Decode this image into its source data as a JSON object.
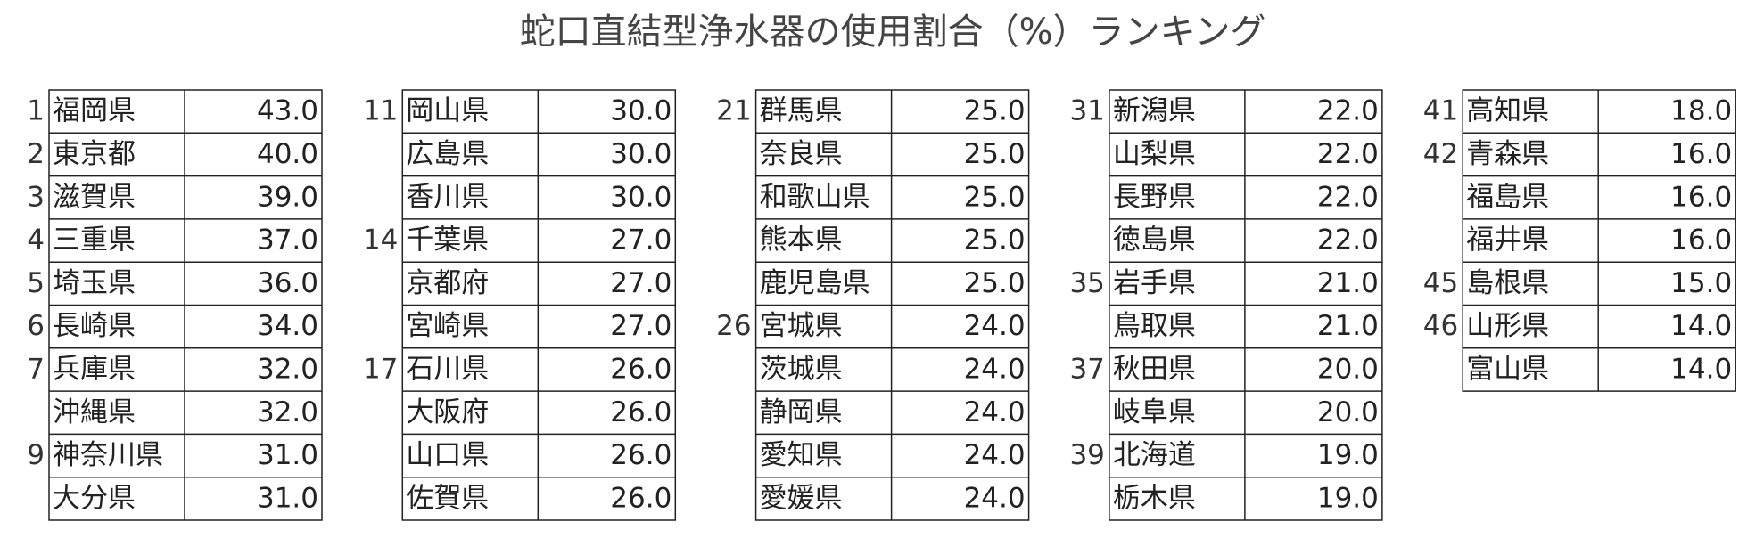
{
  "title": "蛇口直結型浄水器の使用割合（%）ランキング",
  "columns": [
    {
      "rows": [
        {
          "rank": 1,
          "name": "福岡県",
          "value": "43.0"
        },
        {
          "rank": 2,
          "name": "東京都",
          "value": "40.0"
        },
        {
          "rank": 3,
          "name": "滋賀県",
          "value": "39.0"
        },
        {
          "rank": 4,
          "name": "三重県",
          "value": "37.0"
        },
        {
          "rank": 5,
          "name": "埼玉県",
          "value": "36.0"
        },
        {
          "rank": 6,
          "name": "長崎県",
          "value": "34.0"
        },
        {
          "rank": 7,
          "name": "兵庫県",
          "value": "32.0"
        },
        {
          "rank": null,
          "name": "沖縄県",
          "value": "32.0"
        },
        {
          "rank": 9,
          "name": "神奈川県",
          "value": "31.0"
        },
        {
          "rank": null,
          "name": "大分県",
          "value": "31.0"
        }
      ]
    },
    {
      "rows": [
        {
          "rank": 11,
          "name": "岡山県",
          "value": "30.0"
        },
        {
          "rank": null,
          "name": "広島県",
          "value": "30.0"
        },
        {
          "rank": null,
          "name": "香川県",
          "value": "30.0"
        },
        {
          "rank": 14,
          "name": "千葉県",
          "value": "27.0"
        },
        {
          "rank": null,
          "name": "京都府",
          "value": "27.0"
        },
        {
          "rank": null,
          "name": "宮崎県",
          "value": "27.0"
        },
        {
          "rank": 17,
          "name": "石川県",
          "value": "26.0"
        },
        {
          "rank": null,
          "name": "大阪府",
          "value": "26.0"
        },
        {
          "rank": null,
          "name": "山口県",
          "value": "26.0"
        },
        {
          "rank": null,
          "name": "佐賀県",
          "value": "26.0"
        }
      ]
    },
    {
      "rows": [
        {
          "rank": 21,
          "name": "群馬県",
          "value": "25.0"
        },
        {
          "rank": null,
          "name": "奈良県",
          "value": "25.0"
        },
        {
          "rank": null,
          "name": "和歌山県",
          "value": "25.0"
        },
        {
          "rank": null,
          "name": "熊本県",
          "value": "25.0"
        },
        {
          "rank": null,
          "name": "鹿児島県",
          "value": "25.0"
        },
        {
          "rank": 26,
          "name": "宮城県",
          "value": "24.0"
        },
        {
          "rank": null,
          "name": "茨城県",
          "value": "24.0"
        },
        {
          "rank": null,
          "name": "静岡県",
          "value": "24.0"
        },
        {
          "rank": null,
          "name": "愛知県",
          "value": "24.0"
        },
        {
          "rank": null,
          "name": "愛媛県",
          "value": "24.0"
        }
      ]
    },
    {
      "rows": [
        {
          "rank": 31,
          "name": "新潟県",
          "value": "22.0"
        },
        {
          "rank": null,
          "name": "山梨県",
          "value": "22.0"
        },
        {
          "rank": null,
          "name": "長野県",
          "value": "22.0"
        },
        {
          "rank": null,
          "name": "徳島県",
          "value": "22.0"
        },
        {
          "rank": 35,
          "name": "岩手県",
          "value": "21.0"
        },
        {
          "rank": null,
          "name": "鳥取県",
          "value": "21.0"
        },
        {
          "rank": 37,
          "name": "秋田県",
          "value": "20.0"
        },
        {
          "rank": null,
          "name": "岐阜県",
          "value": "20.0"
        },
        {
          "rank": 39,
          "name": "北海道",
          "value": "19.0"
        },
        {
          "rank": null,
          "name": "栃木県",
          "value": "19.0"
        }
      ]
    },
    {
      "rows": [
        {
          "rank": 41,
          "name": "高知県",
          "value": "18.0"
        },
        {
          "rank": 42,
          "name": "青森県",
          "value": "16.0"
        },
        {
          "rank": null,
          "name": "福島県",
          "value": "16.0"
        },
        {
          "rank": null,
          "name": "福井県",
          "value": "16.0"
        },
        {
          "rank": 45,
          "name": "島根県",
          "value": "15.0"
        },
        {
          "rank": 46,
          "name": "山形県",
          "value": "14.0"
        },
        {
          "rank": null,
          "name": "富山県",
          "value": "14.0"
        }
      ]
    }
  ]
}
